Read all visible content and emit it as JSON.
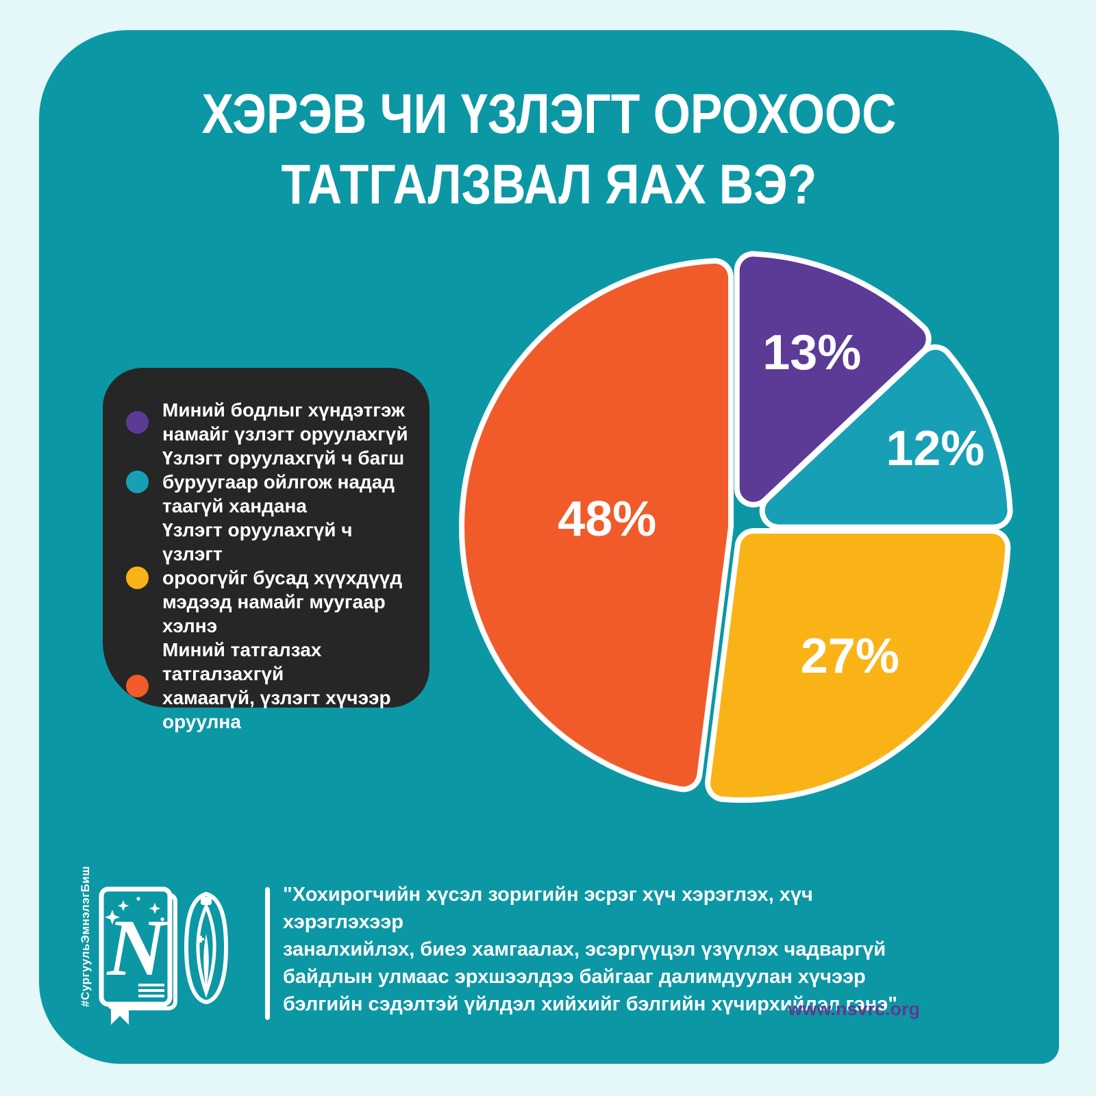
{
  "background_color": "#e4f7f9",
  "card_color": "#0c97a5",
  "title": "ХЭРЭВ ЧИ ҮЗЛЭГТ ОРОХООС\nТАТГАЛЗВАЛ ЯАХ ВЭ?",
  "legend": {
    "background": "#262626",
    "items": [
      {
        "color": "#5c3b97",
        "label": "Миний бодлыг хүндэтгэж\nнамайг үзлэгт оруулахгүй"
      },
      {
        "color": "#17a0b5",
        "label": "Үзлэгт оруулахгүй ч багш\nбуруугаар ойлгож надад\nтаагүй хандана"
      },
      {
        "color": "#fab317",
        "label": "Үзлэгт оруулахгүй ч үзлэгт\nороогүйг бусад хүүхдүүд\nмэдээд намайг муугаар хэлнэ"
      },
      {
        "color": "#f15b2a",
        "label": "Миний татгалзах татгалзахгүй\nхамаагүй, үзлэгт хүчээр оруулна"
      }
    ]
  },
  "chart_data": {
    "type": "pie",
    "title": "ХЭРЭВ ЧИ ҮЗЛЭГТ ОРОХООС ТАТГАЛЗВАЛ ЯАХ ВЭ?",
    "start_angle_deg": 0,
    "direction": "clockwise",
    "legend_position": "left",
    "slices": [
      {
        "label": "Миний бодлыг хүндэтгэж намайг үзлэгт оруулахгүй",
        "value": 13,
        "display": "13%",
        "color": "#5c3b97",
        "label_r": 0.69
      },
      {
        "label": "Үзлэгт оруулахгүй ч багш буруугаар ойлгож надад таагүй хандана",
        "value": 12,
        "display": "12%",
        "color": "#17a0b5",
        "label_r": 0.78
      },
      {
        "label": "Үзлэгт оруулахгүй ч үзлэгт ороогүйг бусад хүүхдүүд мэдээд намайг муугаар хэлнэ",
        "value": 27,
        "display": "27%",
        "color": "#fab317",
        "label_r": 0.62
      },
      {
        "label": "Миний татгалзах татгалзахгүй хамаагүй, үзлэгт хүчээр оруулна",
        "value": 48,
        "display": "48%",
        "color": "#f15b2a",
        "label_r": 0.46
      }
    ]
  },
  "footer": {
    "hashtag": "#СургуульЭмнэлэгБиш",
    "quote": "\"Хохирогчийн хүсэл зоригийн эсрэг хүч хэрэглэх, хүч хэрэглэхээр\nзаналхийлэх, биеэ хамгаалах, эсэргүүцэл үзүүлэх чадваргүй\nбайдлын улмаас эрхшээлдээ байгааг далимдуулан хүчээр\nбэлгийн сэдэлтэй үйлдэл хийхийг бэлгийн хүчирхийлэл гэнэ\"",
    "url": "www.nsvrc.org",
    "url_color": "#5f3a8e"
  }
}
